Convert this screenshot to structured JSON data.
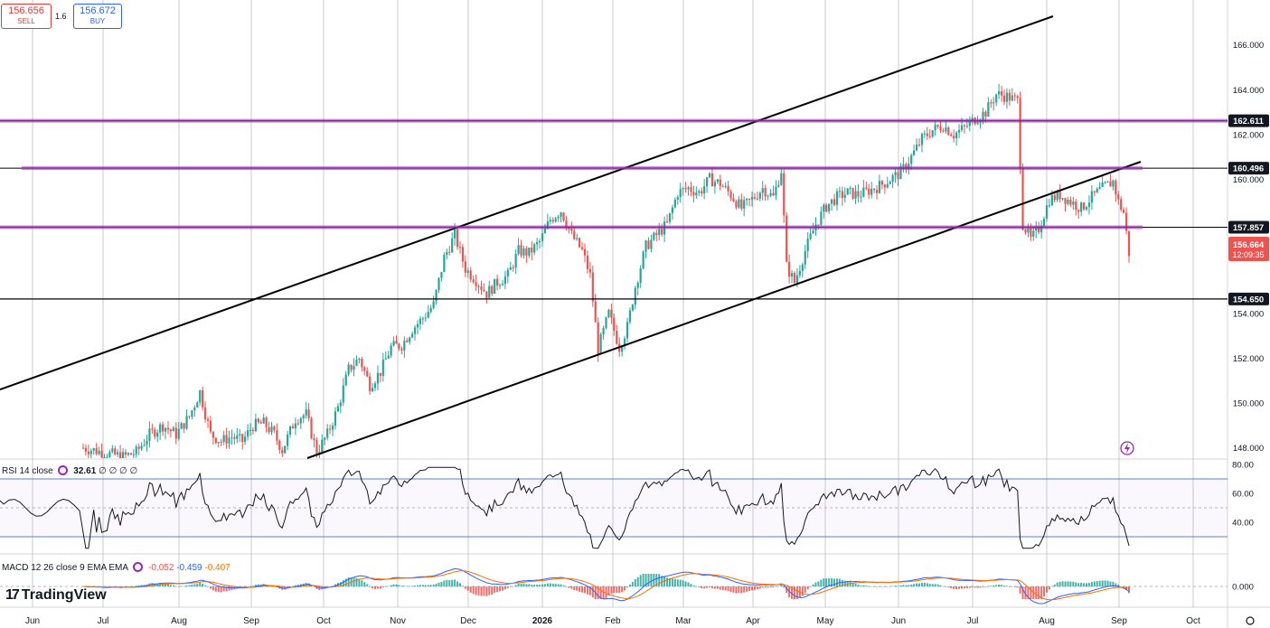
{
  "colors": {
    "up": "#26a69a",
    "down": "#ef5350",
    "level_line": "#7b2d8e",
    "channel": "#000000",
    "grid": "#b2b5be",
    "rsi_line": "#131722",
    "macd_line": "#2962ff",
    "signal_line": "#ff6d00"
  },
  "trade_panel": {
    "sell_price": "156.656",
    "sell_label": "SELL",
    "spread": "1.6",
    "buy_price": "156.672",
    "buy_label": "BUY"
  },
  "indicators": {
    "rsi_label": "RSI 14 close",
    "rsi_value": "32.61",
    "rsi_extra": "∅ ∅ ∅ ∅",
    "macd_label": "MACD 12 26 close 9 EMA EMA",
    "macd_hist": "-0.052",
    "macd_line": "-0.459",
    "macd_signal": "-0.407"
  },
  "branding": {
    "logo_text": "TradingView"
  },
  "chart_data": {
    "type": "candlestick",
    "x_axis_labels": [
      "Jun",
      "Jul",
      "Aug",
      "Sep",
      "Oct",
      "Nov",
      "Dec",
      "2026",
      "Feb",
      "Mar",
      "Apr",
      "May",
      "Jun",
      "Jul",
      "Aug",
      "Sep",
      "Oct"
    ],
    "y_axis_labels": [
      "166.000",
      "164.000",
      "162.000",
      "160.000",
      "154.000",
      "152.000",
      "150.000",
      "148.000"
    ],
    "ylim": [
      147.5,
      167.2
    ],
    "price_path": [
      [
        0,
        148.0
      ],
      [
        15,
        147.6
      ],
      [
        20,
        147.8
      ],
      [
        25,
        148.6
      ],
      [
        30,
        149.0
      ],
      [
        35,
        148.6
      ],
      [
        40,
        149.4
      ],
      [
        44,
        150.5
      ],
      [
        48,
        148.6
      ],
      [
        52,
        148.3
      ],
      [
        56,
        148.5
      ],
      [
        60,
        148.3
      ],
      [
        64,
        149.0
      ],
      [
        68,
        149.1
      ],
      [
        72,
        148.6
      ],
      [
        75,
        147.9
      ],
      [
        80,
        149.3
      ],
      [
        84,
        149.5
      ],
      [
        88,
        147.8
      ],
      [
        92,
        148.6
      ],
      [
        96,
        149.8
      ],
      [
        100,
        151.5
      ],
      [
        104,
        152.0
      ],
      [
        108,
        150.8
      ],
      [
        112,
        151.4
      ],
      [
        116,
        152.5
      ],
      [
        120,
        152.6
      ],
      [
        124,
        153.3
      ],
      [
        128,
        153.8
      ],
      [
        132,
        154.4
      ],
      [
        136,
        156.5
      ],
      [
        140,
        157.5
      ],
      [
        144,
        156.0
      ],
      [
        148,
        155.5
      ],
      [
        152,
        154.9
      ],
      [
        156,
        155.4
      ],
      [
        160,
        155.7
      ],
      [
        164,
        156.8
      ],
      [
        168,
        156.7
      ],
      [
        172,
        157.2
      ],
      [
        176,
        158.2
      ],
      [
        180,
        158.6
      ],
      [
        184,
        157.5
      ],
      [
        188,
        156.8
      ],
      [
        191,
        155.7
      ],
      [
        194,
        152.4
      ],
      [
        198,
        154.0
      ],
      [
        202,
        152.5
      ],
      [
        205,
        153.4
      ],
      [
        208,
        155.2
      ],
      [
        212,
        157.0
      ],
      [
        216,
        157.5
      ],
      [
        220,
        158.0
      ],
      [
        224,
        159.4
      ],
      [
        228,
        159.6
      ],
      [
        232,
        159.4
      ],
      [
        236,
        160.0
      ],
      [
        240,
        159.8
      ],
      [
        244,
        159.3
      ],
      [
        248,
        158.7
      ],
      [
        252,
        159.1
      ],
      [
        256,
        159.6
      ],
      [
        260,
        159.2
      ],
      [
        263,
        160.4
      ],
      [
        265,
        156.1
      ],
      [
        268,
        155.4
      ],
      [
        272,
        156.8
      ],
      [
        276,
        158.0
      ],
      [
        280,
        158.8
      ],
      [
        284,
        159.2
      ],
      [
        288,
        159.4
      ],
      [
        292,
        159.3
      ],
      [
        296,
        159.5
      ],
      [
        300,
        159.7
      ],
      [
        304,
        160.0
      ],
      [
        308,
        160.3
      ],
      [
        312,
        161.0
      ],
      [
        316,
        161.8
      ],
      [
        320,
        162.2
      ],
      [
        324,
        162.4
      ],
      [
        328,
        162.0
      ],
      [
        332,
        162.3
      ],
      [
        336,
        162.7
      ],
      [
        340,
        163.0
      ],
      [
        344,
        163.8
      ],
      [
        348,
        163.7
      ],
      [
        352,
        163.5
      ],
      [
        354,
        158.0
      ],
      [
        357,
        157.3
      ],
      [
        360,
        157.8
      ],
      [
        364,
        159.1
      ],
      [
        368,
        159.3
      ],
      [
        372,
        159.0
      ],
      [
        376,
        158.7
      ],
      [
        380,
        159.2
      ],
      [
        384,
        159.6
      ],
      [
        388,
        159.9
      ],
      [
        390,
        159.0
      ],
      [
        392,
        158.5
      ],
      [
        394,
        156.7
      ]
    ],
    "horizontal_levels": [
      {
        "price": 162.611,
        "label": "162.611",
        "style": "purple"
      },
      {
        "price": 160.496,
        "label": "160.496",
        "style": "purple"
      },
      {
        "price": 157.857,
        "label": "157.857",
        "style": "purple"
      },
      {
        "price": 154.65,
        "label": "154.650",
        "style": "black"
      }
    ],
    "channel_lines": [
      {
        "from": [
          "Apr",
          147.9
        ],
        "to": [
          "Jul",
          167.2
        ]
      },
      {
        "from": [
          "Oct",
          147.5
        ],
        "to": [
          "Sep",
          160.45
        ]
      }
    ],
    "last_price": {
      "value": "156.664",
      "countdown": "12:09:35"
    },
    "rsi": {
      "y_axis_labels": [
        "80.00",
        "60.00",
        "40.00"
      ],
      "levels": [
        70,
        30
      ],
      "last_value": 32.61
    },
    "macd": {
      "y_axis_labels": [
        "0.000"
      ],
      "macd": -0.459,
      "signal": -0.407,
      "histogram": -0.052
    }
  }
}
